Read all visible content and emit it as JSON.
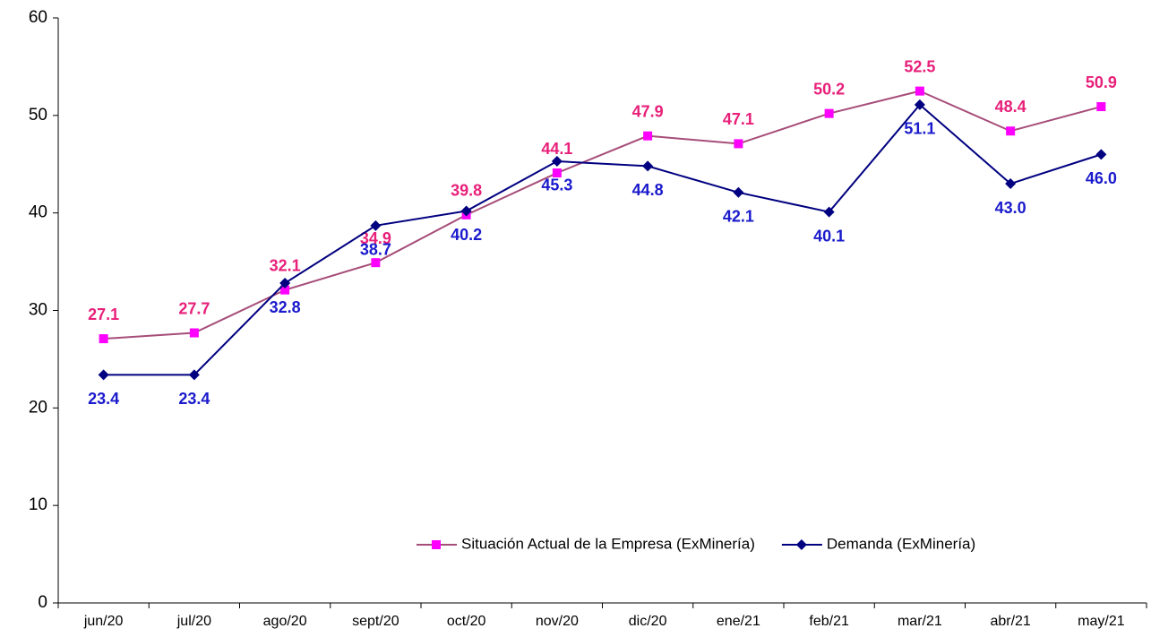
{
  "chart_data": {
    "type": "line",
    "categories": [
      "jun/20",
      "jul/20",
      "ago/20",
      "sept/20",
      "oct/20",
      "nov/20",
      "dic/20",
      "ene/21",
      "feb/21",
      "mar/21",
      "abr/21",
      "may/21"
    ],
    "series": [
      {
        "name": "Situación Actual de la Empresa (ExMinería)",
        "color": "#a64d79",
        "marker_color": "#ff00ff",
        "label_color": "#e8207a",
        "marker": "square",
        "values": [
          27.1,
          27.7,
          32.1,
          34.9,
          39.8,
          44.1,
          47.9,
          47.1,
          50.2,
          52.5,
          48.4,
          50.9
        ],
        "value_labels": [
          "27.1",
          "27.7",
          "32.1",
          "34.9",
          "39.8",
          "44.1",
          "47.9",
          "47.1",
          "50.2",
          "52.5",
          "48.4",
          "50.9"
        ]
      },
      {
        "name": "Demanda (ExMinería)",
        "color": "#000080",
        "marker_color": "#000080",
        "label_color": "#1a1acc",
        "marker": "diamond",
        "values": [
          23.4,
          23.4,
          32.8,
          38.7,
          40.2,
          45.3,
          44.8,
          42.1,
          40.1,
          51.1,
          43.0,
          46.0
        ],
        "value_labels": [
          "23.4",
          "23.4",
          "32.8",
          "38.7",
          "40.2",
          "45.3",
          "44.8",
          "42.1",
          "40.1",
          "51.1",
          "43.0",
          "46.0"
        ]
      }
    ],
    "ylim": [
      0,
      60
    ],
    "yticks": [
      0,
      10,
      20,
      30,
      40,
      50,
      60
    ],
    "grid": false,
    "legend": "lower right"
  }
}
